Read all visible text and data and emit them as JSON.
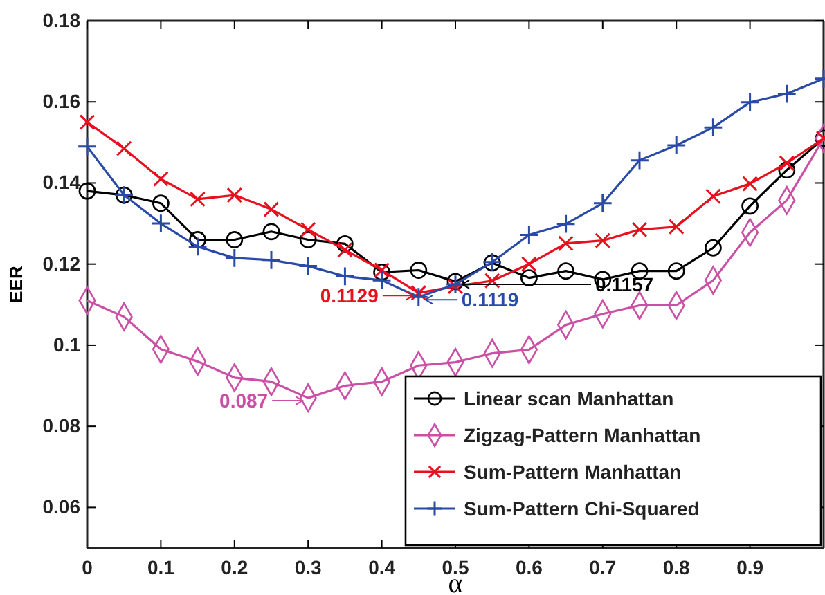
{
  "chart_data": {
    "type": "line",
    "xlabel": "α",
    "ylabel": "EER",
    "x": [
      0,
      0.05,
      0.1,
      0.15,
      0.2,
      0.25,
      0.3,
      0.35,
      0.4,
      0.45,
      0.5,
      0.55,
      0.6,
      0.65,
      0.7,
      0.75,
      0.8,
      0.85,
      0.9,
      0.95,
      1.0
    ],
    "series": [
      {
        "name": "Linear scan Manhattan",
        "color": "#000000",
        "marker": "circle",
        "values": [
          0.138,
          0.137,
          0.135,
          0.126,
          0.126,
          0.128,
          0.126,
          0.125,
          0.118,
          0.1185,
          0.1157,
          0.1203,
          0.1166,
          0.1183,
          0.1162,
          0.1183,
          0.1183,
          0.124,
          0.1343,
          0.1432,
          0.151
        ]
      },
      {
        "name": "Zigzag-Pattern Manhattan",
        "color": "#cc4fa6",
        "marker": "diamond",
        "values": [
          0.111,
          0.107,
          0.099,
          0.096,
          0.092,
          0.091,
          0.087,
          0.09,
          0.091,
          0.095,
          0.0958,
          0.098,
          0.0989,
          0.105,
          0.1077,
          0.1098,
          0.1098,
          0.116,
          0.1278,
          0.1357,
          0.151
        ]
      },
      {
        "name": "Sum-Pattern Manhattan",
        "color": "#e8101e",
        "marker": "cross",
        "values": [
          0.155,
          0.1485,
          0.141,
          0.136,
          0.137,
          0.1335,
          0.1285,
          0.1235,
          0.1185,
          0.1129,
          0.1145,
          0.1159,
          0.12,
          0.1251,
          0.1258,
          0.1285,
          0.1292,
          0.1367,
          0.1398,
          0.1449,
          0.151
        ]
      },
      {
        "name": "Sum-Pattern Chi-Squared",
        "color": "#2a4aa8",
        "marker": "plus",
        "values": [
          0.149,
          0.137,
          0.13,
          0.1243,
          0.1215,
          0.121,
          0.1195,
          0.117,
          0.116,
          0.1119,
          0.115,
          0.1205,
          0.1272,
          0.1299,
          0.135,
          0.1456,
          0.1493,
          0.1537,
          0.1599,
          0.162,
          0.1657
        ]
      }
    ],
    "xlim": [
      0,
      1
    ],
    "xticks": [
      0,
      0.1,
      0.2,
      0.3,
      0.4,
      0.5,
      0.6,
      0.7,
      0.8,
      0.9
    ],
    "ylim": [
      0.05,
      0.18
    ],
    "yticks": [
      0.06,
      0.08,
      0.1,
      0.12,
      0.14,
      0.16,
      0.18
    ],
    "grid": false,
    "legend": "bottom right",
    "annotations": [
      {
        "text": "0.1129",
        "x": 0.45,
        "y": 0.1129
      },
      {
        "text": "0.1119",
        "x": 0.45,
        "y": 0.1119
      },
      {
        "text": "0.1157",
        "x": 0.5,
        "y": 0.1157
      },
      {
        "text": "0.087",
        "x": 0.3,
        "y": 0.087
      }
    ]
  }
}
